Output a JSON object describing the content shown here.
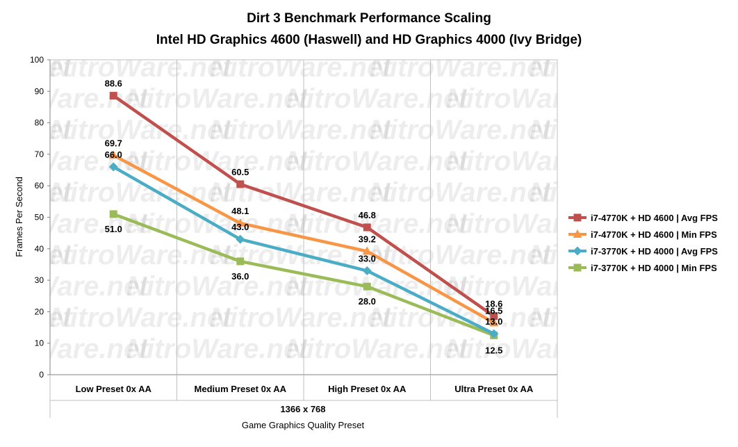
{
  "chart_data": {
    "type": "line",
    "title": "Dirt 3 Benchmark Performance Scaling",
    "subtitle": "Intel HD Graphics 4600 (Haswell) and HD Graphics 4000 (Ivy Bridge)",
    "categories": [
      "Low Preset 0x AA",
      "Medium Preset 0x AA",
      "High Preset 0x AA",
      "Ultra Preset 0x AA"
    ],
    "group_label": "1366 x 768",
    "xlabel": "Game Graphics Quality Preset",
    "ylabel": "Frames Per Second",
    "ylim": [
      0,
      100
    ],
    "yticks": [
      0,
      10,
      20,
      30,
      40,
      50,
      60,
      70,
      80,
      90,
      100
    ],
    "grid": "vertical category separators",
    "legend_position": "right",
    "watermark": "NitroWare.net",
    "series": [
      {
        "name": "i7-4770K + HD 4600 | Avg FPS",
        "values": [
          88.6,
          60.5,
          46.8,
          18.6
        ],
        "labels": [
          "88.6",
          "60.5",
          "46.8",
          "18.6"
        ],
        "color": "#C0504D",
        "marker": "square"
      },
      {
        "name": "i7-4770K + HD 4600 | Min FPS",
        "values": [
          69.7,
          48.1,
          39.2,
          16.5
        ],
        "labels": [
          "69.7",
          "48.1",
          "39.2",
          "16.5"
        ],
        "color": "#F79646",
        "marker": "triangle"
      },
      {
        "name": "i7-3770K + HD 4000 | Avg FPS",
        "values": [
          66.0,
          43.0,
          33.0,
          13.0
        ],
        "labels": [
          "66.0",
          "43.0",
          "33.0",
          "13.0"
        ],
        "color": "#4BACC6",
        "marker": "diamond"
      },
      {
        "name": "i7-3770K + HD 4000 | Min FPS",
        "values": [
          51.0,
          36.0,
          28.0,
          12.5
        ],
        "labels": [
          "51.0",
          "36.0",
          "28.0",
          "12.5"
        ],
        "color": "#9BBB59",
        "marker": "square"
      }
    ]
  }
}
